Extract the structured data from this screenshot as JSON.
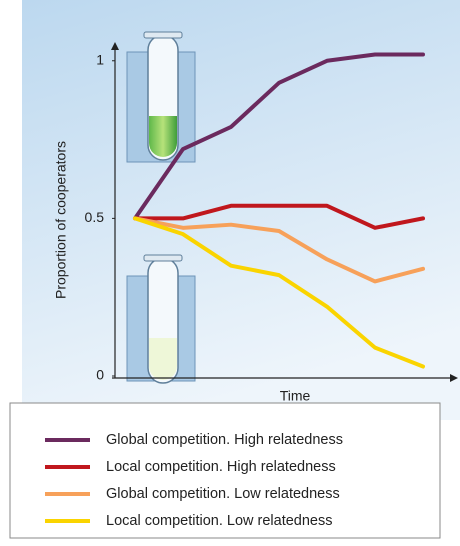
{
  "chart_data": {
    "type": "line",
    "y_label": "Proportion of cooperators",
    "x_label": "Time",
    "categories": [
      null,
      null,
      null,
      null,
      null,
      null,
      null
    ],
    "series": [
      {
        "name": "Global competition. High relatedness",
        "color": "#6b2a5e",
        "values": [
          0.5,
          0.72,
          0.79,
          0.93,
          1.0,
          1.02,
          1.02
        ]
      },
      {
        "name": "Local competition. High relatedness",
        "color": "#c0171d",
        "values": [
          0.5,
          0.5,
          0.54,
          0.54,
          0.54,
          0.47,
          0.5
        ]
      },
      {
        "name": "Global competition. Low relatedness",
        "color": "#f7a15a",
        "values": [
          0.5,
          0.47,
          0.48,
          0.46,
          0.37,
          0.3,
          0.34
        ]
      },
      {
        "name": "Local competition. Low relatedness",
        "color": "#fad400",
        "values": [
          0.5,
          0.45,
          0.35,
          0.32,
          0.22,
          0.09,
          0.03
        ]
      }
    ],
    "ylim": [
      0,
      1.05
    ],
    "yticks": [
      0,
      0.5,
      1
    ],
    "legend": "bottom"
  }
}
